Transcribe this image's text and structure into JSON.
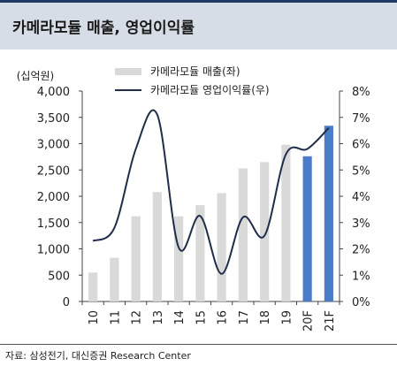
{
  "title": "카메라모듈 매출, 영업이익률",
  "source": "자료: 삼성전기, 대신증권 Research Center",
  "chart_data": {
    "type": "bar+line",
    "left_axis_unit": "(십억원)",
    "categories": [
      "10",
      "11",
      "12",
      "13",
      "14",
      "15",
      "16",
      "17",
      "18",
      "19",
      "20F",
      "21F"
    ],
    "series": [
      {
        "name": "카메라모듈 매출(좌)",
        "type": "bar",
        "axis": "left",
        "values": [
          550,
          830,
          1620,
          2080,
          1620,
          1830,
          2060,
          2530,
          2650,
          2980,
          2760,
          3340
        ],
        "forecast_from_index": 10
      },
      {
        "name": "카메라모듈 영업이익률(우)",
        "type": "line",
        "axis": "right",
        "values": [
          2.3,
          2.8,
          5.8,
          7.1,
          2.05,
          3.25,
          1.05,
          3.2,
          2.5,
          5.6,
          5.8,
          6.6
        ]
      }
    ],
    "left_ylim": [
      0,
      4000
    ],
    "left_ticks": [
      "0",
      "500",
      "1,000",
      "1,500",
      "2,000",
      "2,500",
      "3,000",
      "3,500",
      "4,000"
    ],
    "right_ylim": [
      0,
      8
    ],
    "right_ticks": [
      "0%",
      "1%",
      "2%",
      "3%",
      "4%",
      "5%",
      "6%",
      "7%",
      "8%"
    ],
    "legend_position": "top-center",
    "grid": false,
    "colors": {
      "bar": "#d9d9d9",
      "bar_forecast": "#4a7cc9",
      "line": "#1f2d4a"
    }
  }
}
